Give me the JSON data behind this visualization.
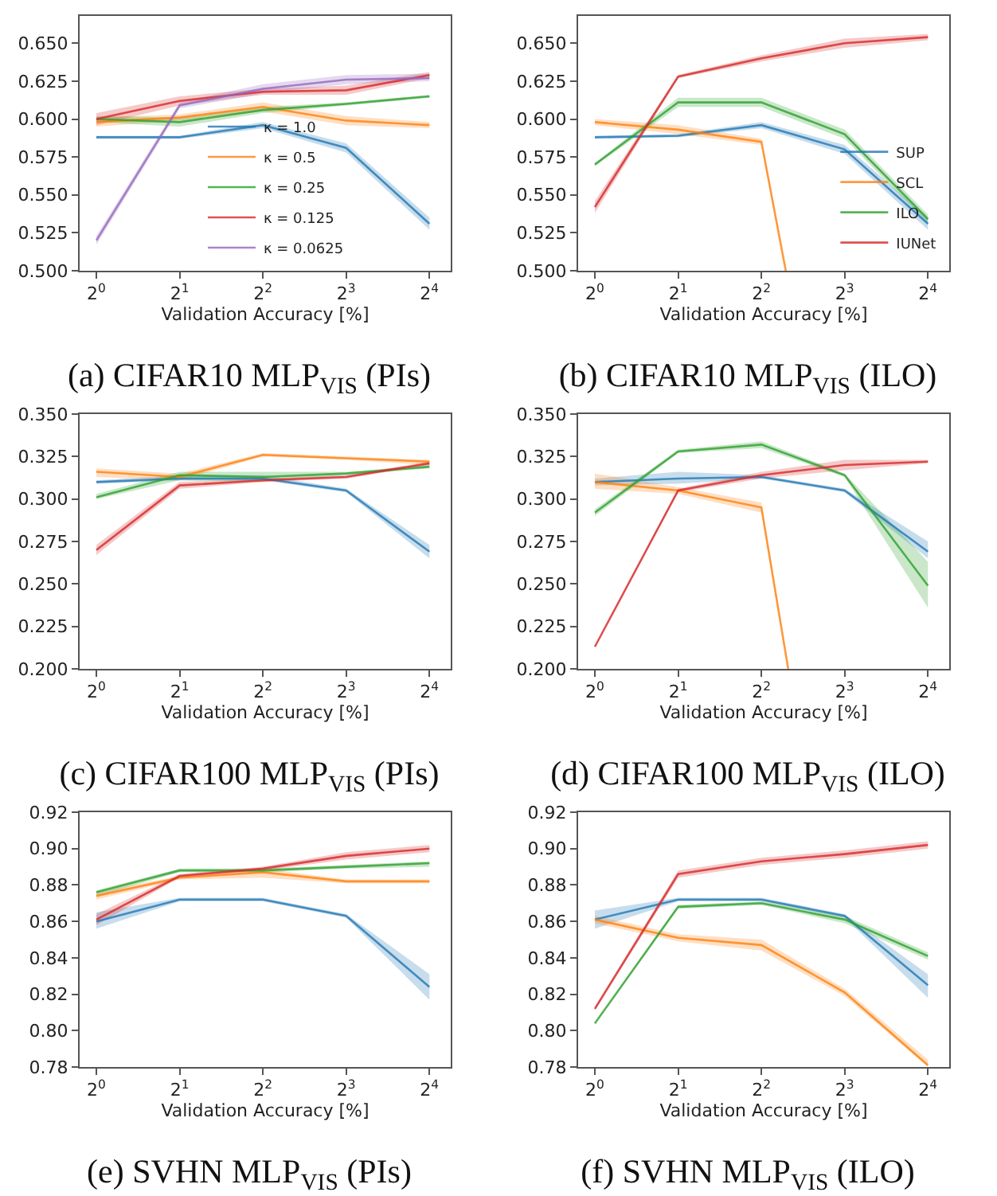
{
  "chart_data": [
    {
      "type": "line",
      "title": "(a) CIFAR10 MLP$_{VIS}$ (PIs)",
      "xlabel": "Validation Accuracy [%]",
      "log": "x",
      "grid": false,
      "legend": "bottom",
      "x": [
        1,
        2,
        4,
        8,
        16
      ],
      "xlim": [
        0.87,
        19.1
      ],
      "xticks": [
        {
          "value": 1,
          "label": "2$^{0}$"
        },
        {
          "value": 2,
          "label": "2$^{1}$"
        },
        {
          "value": 4,
          "label": "2$^{2}$"
        },
        {
          "value": 8,
          "label": "2$^{3}$"
        },
        {
          "value": 16,
          "label": "2$^{4}$"
        }
      ],
      "ylim": [
        0.5,
        0.668
      ],
      "yticks": [
        {
          "value": 0.5,
          "label": "0.500"
        },
        {
          "value": 0.525,
          "label": "0.525"
        },
        {
          "value": 0.55,
          "label": "0.550"
        },
        {
          "value": 0.575,
          "label": "0.575"
        },
        {
          "value": 0.6,
          "label": "0.600"
        },
        {
          "value": 0.625,
          "label": "0.625"
        },
        {
          "value": 0.65,
          "label": "0.650"
        }
      ],
      "series": [
        {
          "name": "κ = 1.0",
          "color": "#1f77b4",
          "values": [
            0.588,
            0.588,
            0.596,
            0.581,
            0.531
          ],
          "lower": [
            0.587,
            0.587,
            0.594,
            0.578,
            0.527
          ],
          "upper": [
            0.589,
            0.589,
            0.598,
            0.584,
            0.535
          ]
        },
        {
          "name": "κ = 0.5",
          "color": "#ff7f0e",
          "values": [
            0.598,
            0.601,
            0.608,
            0.599,
            0.596
          ],
          "lower": [
            0.595,
            0.599,
            0.605,
            0.596,
            0.594
          ],
          "upper": [
            0.601,
            0.603,
            0.611,
            0.602,
            0.598
          ]
        },
        {
          "name": "κ = 0.25",
          "color": "#2ca02c",
          "values": [
            0.6,
            0.598,
            0.606,
            0.61,
            0.615
          ],
          "lower": [
            0.598,
            0.595,
            0.604,
            0.609,
            0.614
          ],
          "upper": [
            0.602,
            0.601,
            0.608,
            0.611,
            0.616
          ]
        },
        {
          "name": "κ = 0.125",
          "color": "#d62728",
          "values": [
            0.6,
            0.612,
            0.618,
            0.619,
            0.629
          ],
          "lower": [
            0.596,
            0.609,
            0.616,
            0.616,
            0.627
          ],
          "upper": [
            0.604,
            0.615,
            0.62,
            0.622,
            0.631
          ]
        },
        {
          "name": "κ = 0.0625",
          "color": "#9467bd",
          "values": [
            0.52,
            0.609,
            0.62,
            0.626,
            0.627
          ],
          "lower": [
            0.517,
            0.607,
            0.617,
            0.623,
            0.625
          ],
          "upper": [
            0.523,
            0.611,
            0.623,
            0.629,
            0.63
          ]
        }
      ]
    },
    {
      "type": "line",
      "title": "(b) CIFAR10 MLP$_{VIS}$ (ILO)",
      "xlabel": "Validation Accuracy [%]",
      "log": "x",
      "grid": false,
      "legend": "bottom right",
      "x": [
        1,
        2,
        4,
        8,
        16
      ],
      "xlim": [
        0.87,
        19.1
      ],
      "xticks": [
        {
          "value": 1,
          "label": "2$^{0}$"
        },
        {
          "value": 2,
          "label": "2$^{1}$"
        },
        {
          "value": 4,
          "label": "2$^{2}$"
        },
        {
          "value": 8,
          "label": "2$^{3}$"
        },
        {
          "value": 16,
          "label": "2$^{4}$"
        }
      ],
      "ylim": [
        0.5,
        0.668
      ],
      "yticks": [
        {
          "value": 0.5,
          "label": "0.500"
        },
        {
          "value": 0.525,
          "label": "0.525"
        },
        {
          "value": 0.55,
          "label": "0.550"
        },
        {
          "value": 0.575,
          "label": "0.575"
        },
        {
          "value": 0.6,
          "label": "0.600"
        },
        {
          "value": 0.625,
          "label": "0.625"
        },
        {
          "value": 0.65,
          "label": "0.650"
        }
      ],
      "series": [
        {
          "name": "SUP",
          "color": "#1f77b4",
          "values": [
            0.588,
            0.589,
            0.596,
            0.58,
            0.531
          ],
          "lower": [
            0.587,
            0.588,
            0.594,
            0.577,
            0.527
          ],
          "upper": [
            0.589,
            0.59,
            0.598,
            0.583,
            0.535
          ]
        },
        {
          "name": "SCL",
          "color": "#ff7f0e",
          "x": [
            1,
            2,
            4,
            4.9
          ],
          "values": [
            0.598,
            0.593,
            0.585,
            0.5
          ],
          "lower": [
            0.596,
            0.59,
            0.583,
            0.5
          ],
          "upper": [
            0.6,
            0.596,
            0.587,
            0.5
          ]
        },
        {
          "name": "ILO",
          "color": "#2ca02c",
          "values": [
            0.57,
            0.611,
            0.611,
            0.59,
            0.534
          ],
          "lower": [
            0.569,
            0.608,
            0.608,
            0.587,
            0.531
          ],
          "upper": [
            0.571,
            0.614,
            0.614,
            0.593,
            0.537
          ]
        },
        {
          "name": "IUNet",
          "color": "#d62728",
          "values": [
            0.542,
            0.628,
            0.64,
            0.65,
            0.654
          ],
          "lower": [
            0.538,
            0.627,
            0.638,
            0.647,
            0.652
          ],
          "upper": [
            0.546,
            0.629,
            0.642,
            0.653,
            0.656
          ]
        }
      ]
    },
    {
      "type": "line",
      "title": "(c) CIFAR100 MLP$_{VIS}$ (PIs)",
      "xlabel": "Validation Accuracy [%]",
      "log": "x",
      "grid": false,
      "x": [
        1,
        2,
        4,
        8,
        16
      ],
      "xlim": [
        0.87,
        19.1
      ],
      "xticks": [
        {
          "value": 1,
          "label": "2$^{0}$"
        },
        {
          "value": 2,
          "label": "2$^{1}$"
        },
        {
          "value": 4,
          "label": "2$^{2}$"
        },
        {
          "value": 8,
          "label": "2$^{3}$"
        },
        {
          "value": 16,
          "label": "2$^{4}$"
        }
      ],
      "ylim": [
        0.2,
        0.35
      ],
      "yticks": [
        {
          "value": 0.2,
          "label": "0.200"
        },
        {
          "value": 0.225,
          "label": "0.225"
        },
        {
          "value": 0.25,
          "label": "0.250"
        },
        {
          "value": 0.275,
          "label": "0.275"
        },
        {
          "value": 0.3,
          "label": "0.300"
        },
        {
          "value": 0.325,
          "label": "0.325"
        },
        {
          "value": 0.35,
          "label": "0.350"
        }
      ],
      "series": [
        {
          "color": "#1f77b4",
          "values": [
            0.31,
            0.312,
            0.312,
            0.305,
            0.269
          ],
          "lower": [
            0.309,
            0.311,
            0.311,
            0.304,
            0.265
          ],
          "upper": [
            0.311,
            0.314,
            0.314,
            0.306,
            0.273
          ]
        },
        {
          "color": "#ff7f0e",
          "values": [
            0.316,
            0.313,
            0.326,
            0.324,
            0.322
          ],
          "lower": [
            0.313,
            0.311,
            0.325,
            0.323,
            0.32
          ],
          "upper": [
            0.318,
            0.315,
            0.327,
            0.325,
            0.323
          ]
        },
        {
          "color": "#2ca02c",
          "values": [
            0.301,
            0.314,
            0.313,
            0.315,
            0.319
          ],
          "lower": [
            0.3,
            0.311,
            0.31,
            0.314,
            0.318
          ],
          "upper": [
            0.303,
            0.316,
            0.316,
            0.316,
            0.32
          ]
        },
        {
          "color": "#d62728",
          "values": [
            0.27,
            0.308,
            0.311,
            0.313,
            0.321
          ],
          "lower": [
            0.267,
            0.306,
            0.31,
            0.312,
            0.32
          ],
          "upper": [
            0.273,
            0.31,
            0.312,
            0.314,
            0.322
          ]
        }
      ]
    },
    {
      "type": "line",
      "title": "(d) CIFAR100 MLP$_{VIS}$ (ILO)",
      "xlabel": "Validation Accuracy [%]",
      "log": "x",
      "grid": false,
      "x": [
        1,
        2,
        4,
        8,
        16
      ],
      "xlim": [
        0.87,
        19.1
      ],
      "xticks": [
        {
          "value": 1,
          "label": "2$^{0}$"
        },
        {
          "value": 2,
          "label": "2$^{1}$"
        },
        {
          "value": 4,
          "label": "2$^{2}$"
        },
        {
          "value": 8,
          "label": "2$^{3}$"
        },
        {
          "value": 16,
          "label": "2$^{4}$"
        }
      ],
      "ylim": [
        0.2,
        0.35
      ],
      "yticks": [
        {
          "value": 0.2,
          "label": "0.200"
        },
        {
          "value": 0.225,
          "label": "0.225"
        },
        {
          "value": 0.25,
          "label": "0.250"
        },
        {
          "value": 0.275,
          "label": "0.275"
        },
        {
          "value": 0.3,
          "label": "0.300"
        },
        {
          "value": 0.325,
          "label": "0.325"
        },
        {
          "value": 0.35,
          "label": "0.350"
        }
      ],
      "series": [
        {
          "color": "#1f77b4",
          "values": [
            0.31,
            0.312,
            0.313,
            0.305,
            0.269
          ],
          "lower": [
            0.308,
            0.309,
            0.312,
            0.304,
            0.265
          ],
          "upper": [
            0.312,
            0.316,
            0.314,
            0.306,
            0.275
          ]
        },
        {
          "color": "#ff7f0e",
          "x": [
            1,
            2,
            4,
            5
          ],
          "values": [
            0.31,
            0.305,
            0.295,
            0.2
          ],
          "lower": [
            0.306,
            0.303,
            0.292,
            0.2
          ],
          "upper": [
            0.315,
            0.307,
            0.298,
            0.2
          ]
        },
        {
          "color": "#2ca02c",
          "values": [
            0.292,
            0.328,
            0.332,
            0.314,
            0.249
          ],
          "lower": [
            0.29,
            0.327,
            0.33,
            0.313,
            0.236
          ],
          "upper": [
            0.294,
            0.329,
            0.334,
            0.315,
            0.263
          ]
        },
        {
          "color": "#d62728",
          "values": [
            0.213,
            0.305,
            0.314,
            0.32,
            0.322
          ],
          "lower": [
            0.213,
            0.304,
            0.312,
            0.317,
            0.321
          ],
          "upper": [
            0.213,
            0.306,
            0.316,
            0.323,
            0.323
          ]
        }
      ]
    },
    {
      "type": "line",
      "title": "(e) SVHN MLP$_{VIS}$ (PIs)",
      "xlabel": "Validation Accuracy [%]",
      "log": "x",
      "grid": false,
      "x": [
        1,
        2,
        4,
        8,
        16
      ],
      "xlim": [
        0.87,
        19.1
      ],
      "xticks": [
        {
          "value": 1,
          "label": "2$^{0}$"
        },
        {
          "value": 2,
          "label": "2$^{1}$"
        },
        {
          "value": 4,
          "label": "2$^{2}$"
        },
        {
          "value": 8,
          "label": "2$^{3}$"
        },
        {
          "value": 16,
          "label": "2$^{4}$"
        }
      ],
      "ylim": [
        0.78,
        0.92
      ],
      "yticks": [
        {
          "value": 0.78,
          "label": "0.78"
        },
        {
          "value": 0.8,
          "label": "0.80"
        },
        {
          "value": 0.82,
          "label": "0.82"
        },
        {
          "value": 0.84,
          "label": "0.84"
        },
        {
          "value": 0.86,
          "label": "0.86"
        },
        {
          "value": 0.88,
          "label": "0.88"
        },
        {
          "value": 0.9,
          "label": "0.90"
        },
        {
          "value": 0.92,
          "label": "0.92"
        }
      ],
      "series": [
        {
          "color": "#1f77b4",
          "values": [
            0.86,
            0.872,
            0.872,
            0.863,
            0.824
          ],
          "lower": [
            0.856,
            0.871,
            0.871,
            0.862,
            0.817
          ],
          "upper": [
            0.865,
            0.873,
            0.873,
            0.864,
            0.831
          ]
        },
        {
          "color": "#ff7f0e",
          "values": [
            0.874,
            0.884,
            0.887,
            0.882,
            0.882
          ],
          "lower": [
            0.872,
            0.883,
            0.884,
            0.881,
            0.881
          ],
          "upper": [
            0.876,
            0.885,
            0.889,
            0.883,
            0.883
          ]
        },
        {
          "color": "#2ca02c",
          "values": [
            0.876,
            0.888,
            0.888,
            0.89,
            0.892
          ],
          "lower": [
            0.874,
            0.887,
            0.887,
            0.889,
            0.89
          ],
          "upper": [
            0.877,
            0.889,
            0.889,
            0.891,
            0.893
          ]
        },
        {
          "color": "#d62728",
          "values": [
            0.861,
            0.885,
            0.889,
            0.896,
            0.9
          ],
          "lower": [
            0.858,
            0.884,
            0.888,
            0.894,
            0.898
          ],
          "upper": [
            0.864,
            0.886,
            0.89,
            0.898,
            0.902
          ]
        }
      ]
    },
    {
      "type": "line",
      "title": "(f) SVHN MLP$_{VIS}$ (ILO)",
      "xlabel": "Validation Accuracy [%]",
      "log": "x",
      "grid": false,
      "x": [
        1,
        2,
        4,
        8,
        16
      ],
      "xlim": [
        0.87,
        19.1
      ],
      "xticks": [
        {
          "value": 1,
          "label": "2$^{0}$"
        },
        {
          "value": 2,
          "label": "2$^{1}$"
        },
        {
          "value": 4,
          "label": "2$^{2}$"
        },
        {
          "value": 8,
          "label": "2$^{3}$"
        },
        {
          "value": 16,
          "label": "2$^{4}$"
        }
      ],
      "ylim": [
        0.78,
        0.92
      ],
      "yticks": [
        {
          "value": 0.78,
          "label": "0.78"
        },
        {
          "value": 0.8,
          "label": "0.80"
        },
        {
          "value": 0.82,
          "label": "0.82"
        },
        {
          "value": 0.84,
          "label": "0.84"
        },
        {
          "value": 0.86,
          "label": "0.86"
        },
        {
          "value": 0.88,
          "label": "0.88"
        },
        {
          "value": 0.9,
          "label": "0.90"
        },
        {
          "value": 0.92,
          "label": "0.92"
        }
      ],
      "series": [
        {
          "color": "#1f77b4",
          "values": [
            0.861,
            0.872,
            0.872,
            0.863,
            0.825
          ],
          "lower": [
            0.856,
            0.871,
            0.871,
            0.862,
            0.818
          ],
          "upper": [
            0.866,
            0.873,
            0.873,
            0.864,
            0.831
          ]
        },
        {
          "color": "#ff7f0e",
          "values": [
            0.861,
            0.851,
            0.847,
            0.821,
            0.781
          ],
          "lower": [
            0.859,
            0.849,
            0.844,
            0.819,
            0.78
          ],
          "upper": [
            0.863,
            0.853,
            0.85,
            0.823,
            0.784
          ]
        },
        {
          "color": "#2ca02c",
          "values": [
            0.804,
            0.868,
            0.87,
            0.861,
            0.841
          ],
          "lower": [
            0.804,
            0.867,
            0.869,
            0.859,
            0.839
          ],
          "upper": [
            0.804,
            0.869,
            0.871,
            0.863,
            0.843
          ]
        },
        {
          "color": "#d62728",
          "values": [
            0.812,
            0.886,
            0.893,
            0.897,
            0.902
          ],
          "lower": [
            0.811,
            0.884,
            0.891,
            0.895,
            0.9
          ],
          "upper": [
            0.813,
            0.888,
            0.895,
            0.899,
            0.904
          ]
        }
      ]
    }
  ]
}
